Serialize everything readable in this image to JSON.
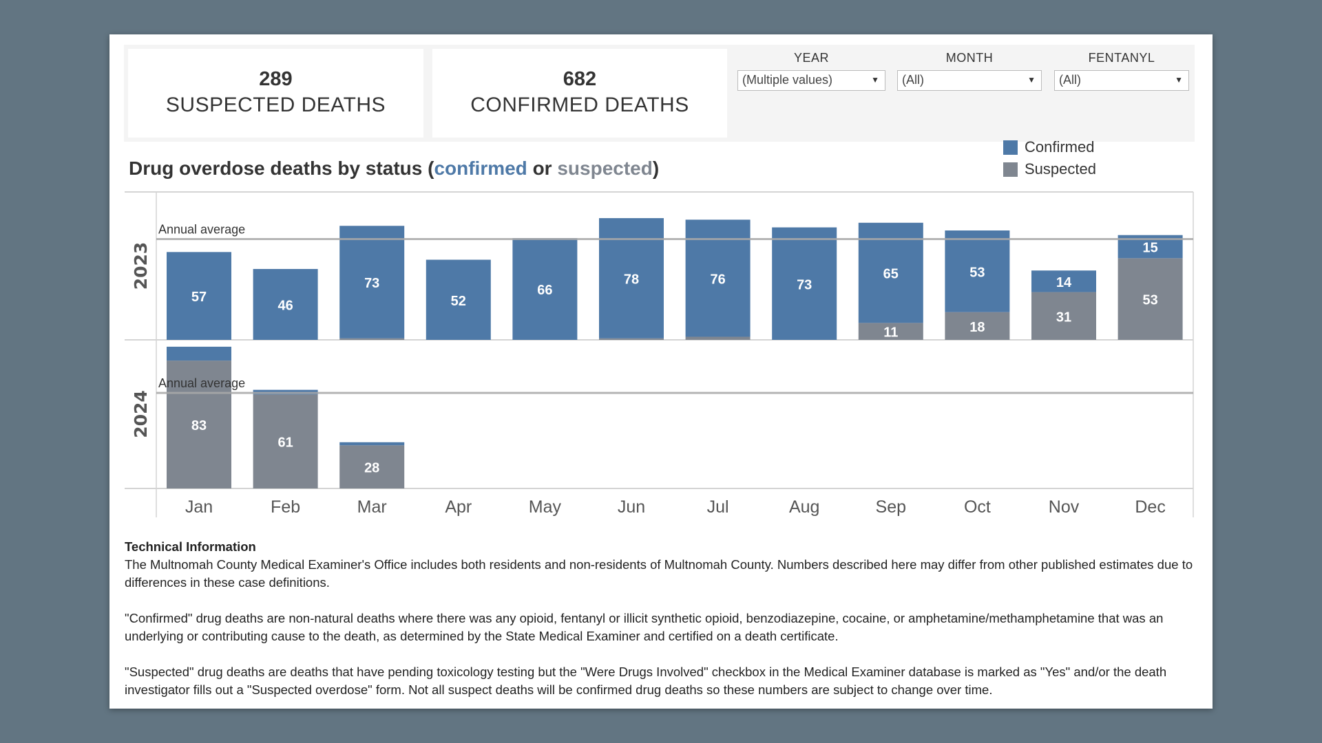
{
  "kpis": [
    {
      "value": "289",
      "label": "SUSPECTED DEATHS"
    },
    {
      "value": "682",
      "label": "CONFIRMED DEATHS"
    }
  ],
  "filters": [
    {
      "label": "YEAR",
      "value": "(Multiple values)"
    },
    {
      "label": "MONTH",
      "value": "(All)"
    },
    {
      "label": "FENTANYL",
      "value": "(All)"
    }
  ],
  "colors": {
    "confirmed": "#4e79a7",
    "suspected": "#7f8690",
    "average_line": "#a9a9a9"
  },
  "chart_data": {
    "type": "bar",
    "stacked": true,
    "title_parts": {
      "prefix": "Drug overdose deaths by status (",
      "confirmed": "confirmed",
      "middle": " or ",
      "suspected": "suspected",
      "suffix": ")"
    },
    "categories": [
      "Jan",
      "Feb",
      "Mar",
      "Apr",
      "May",
      "Jun",
      "Jul",
      "Aug",
      "Sep",
      "Oct",
      "Nov",
      "Dec"
    ],
    "legend": [
      {
        "name": "Confirmed"
      },
      {
        "name": "Suspected"
      }
    ],
    "legend_position": "top-right",
    "reference_line_label": "Annual average",
    "ylim": [
      0,
      96
    ],
    "panels": [
      {
        "year": "2023",
        "confirmed": [
          57,
          46,
          73,
          52,
          66,
          78,
          76,
          73,
          65,
          53,
          14,
          15
        ],
        "suspected": [
          0,
          0,
          1,
          0,
          0,
          1,
          2,
          0,
          11,
          18,
          31,
          53
        ],
        "annual_average": 65.4
      },
      {
        "year": "2024",
        "confirmed": [
          9,
          3,
          2,
          null,
          null,
          null,
          null,
          null,
          null,
          null,
          null,
          null
        ],
        "suspected": [
          83,
          61,
          28,
          null,
          null,
          null,
          null,
          null,
          null,
          null,
          null,
          null
        ],
        "annual_average": 62
      }
    ]
  },
  "tech": {
    "heading": "Technical Information",
    "p1": "The Multnomah County Medical Examiner's Office includes both residents and non-residents of Multnomah County. Numbers described here may differ from other published estimates due to differences in these case definitions.",
    "p2": "\"Confirmed\" drug deaths are non-natural deaths where there was any opioid, fentanyl or illicit synthetic opioid, benzodiazepine, cocaine, or amphetamine/methamphetamine that was an underlying or contributing cause to the death, as determined by the State Medical Examiner and certified on a death certificate.",
    "p3": "\"Suspected\" drug deaths are deaths that have pending toxicology testing but the \"Were Drugs Involved\" checkbox in the Medical Examiner database is marked as \"Yes\" and/or the death investigator fills out a \"Suspected overdose\" form. Not all suspect deaths will be confirmed drug deaths so these numbers are subject to change over time."
  }
}
